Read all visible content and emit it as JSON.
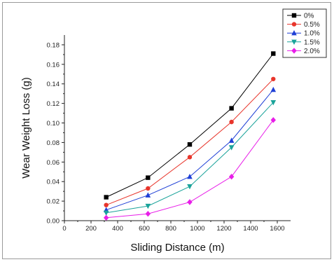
{
  "chart_data": {
    "type": "line",
    "xlabel": "Sliding Distance (m)",
    "ylabel": "Wear Weight Loss (g)",
    "xlim": [
      0,
      1700
    ],
    "ylim": [
      0,
      0.19
    ],
    "x_ticks": [
      "0",
      "200",
      "400",
      "600",
      "800",
      "1000",
      "1200",
      "1400",
      "1600"
    ],
    "y_ticks": [
      "0.00",
      "0.02",
      "0.04",
      "0.06",
      "0.08",
      "0.10",
      "0.12",
      "0.14",
      "0.16",
      "0.18"
    ],
    "x": [
      314,
      628,
      942,
      1256,
      1570
    ],
    "legend_position": "top-right",
    "series": [
      {
        "name": "0%",
        "color": "#000000",
        "marker": "square",
        "values": [
          0.024,
          0.044,
          0.078,
          0.115,
          0.171
        ]
      },
      {
        "name": "0.5%",
        "color": "#e8352b",
        "marker": "circle",
        "values": [
          0.016,
          0.033,
          0.065,
          0.101,
          0.145
        ]
      },
      {
        "name": "1.0%",
        "color": "#1e3fd6",
        "marker": "triangle-up",
        "values": [
          0.011,
          0.026,
          0.045,
          0.082,
          0.134
        ]
      },
      {
        "name": "1.5%",
        "color": "#1aa39a",
        "marker": "triangle-down",
        "values": [
          0.008,
          0.015,
          0.035,
          0.075,
          0.121
        ]
      },
      {
        "name": "2.0%",
        "color": "#e81ee8",
        "marker": "diamond",
        "values": [
          0.003,
          0.007,
          0.019,
          0.045,
          0.103
        ]
      }
    ]
  }
}
